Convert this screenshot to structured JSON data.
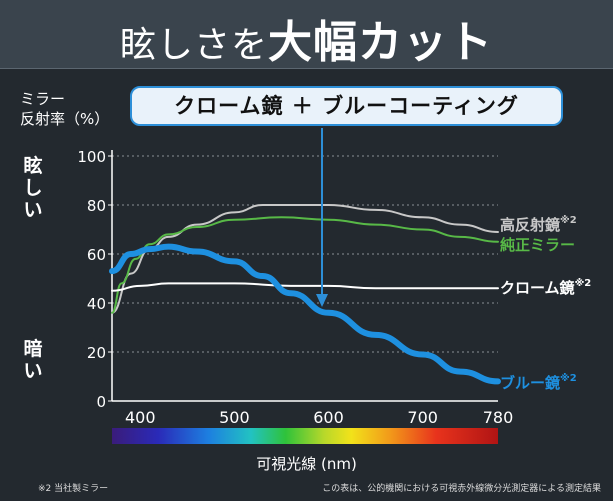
{
  "header": {
    "title_prefix": "眩しさを",
    "title_emphasis": "大幅カット"
  },
  "yaxis": {
    "label_line1": "ミラー",
    "label_line2": "反射率（%）"
  },
  "callout": {
    "text": "クローム鏡 ＋ ブルーコーティング"
  },
  "side_labels": {
    "top": "眩しい",
    "bottom": "暗い"
  },
  "legend": {
    "high": {
      "text": "高反射鏡",
      "mark": "※2",
      "color": "#c8c8c8"
    },
    "pure": {
      "text": "純正ミラー",
      "color": "#58b947"
    },
    "chrome": {
      "text": "クローム鏡",
      "mark": "※2",
      "color": "#ffffff"
    },
    "blue": {
      "text": "ブルー鏡",
      "mark": "※2",
      "color": "#1e90e0"
    }
  },
  "footnotes": {
    "left": "※2 当社製ミラー",
    "right": "この表は、公的機関における可視赤外線微分光測定器による測定結果"
  },
  "chart_data": {
    "type": "line",
    "title": "眩しさを大幅カット",
    "xlabel": "可視光線 (nm)",
    "ylabel": "ミラー反射率（%）",
    "xlim": [
      370,
      780
    ],
    "ylim": [
      0,
      100
    ],
    "x_ticks": [
      400,
      500,
      600,
      700,
      780
    ],
    "y_ticks": [
      0,
      20,
      40,
      60,
      80,
      100
    ],
    "series": [
      {
        "name": "高反射鏡",
        "x": [
          370,
          390,
          410,
          430,
          460,
          500,
          530,
          560,
          600,
          650,
          700,
          740,
          780
        ],
        "values": [
          36,
          52,
          62,
          67,
          72,
          77,
          80,
          80,
          80,
          78,
          75,
          72,
          69
        ]
      },
      {
        "name": "純正ミラー",
        "x": [
          370,
          380,
          395,
          410,
          430,
          460,
          500,
          550,
          600,
          650,
          700,
          740,
          780
        ],
        "values": [
          36,
          48,
          58,
          64,
          68,
          71,
          74,
          75,
          74,
          72,
          70,
          67,
          65
        ]
      },
      {
        "name": "クローム鏡",
        "x": [
          370,
          400,
          430,
          500,
          560,
          600,
          650,
          700,
          780
        ],
        "values": [
          45,
          47,
          48,
          48,
          47,
          47,
          46,
          46,
          46
        ]
      },
      {
        "name": "ブルー鏡",
        "x": [
          370,
          390,
          410,
          430,
          460,
          500,
          530,
          560,
          600,
          650,
          700,
          740,
          780
        ],
        "values": [
          53,
          60,
          62,
          63,
          61,
          57,
          51,
          44,
          36,
          27,
          19,
          12,
          8
        ]
      }
    ],
    "annotation": "クローム鏡 ＋ ブルーコーティング"
  }
}
